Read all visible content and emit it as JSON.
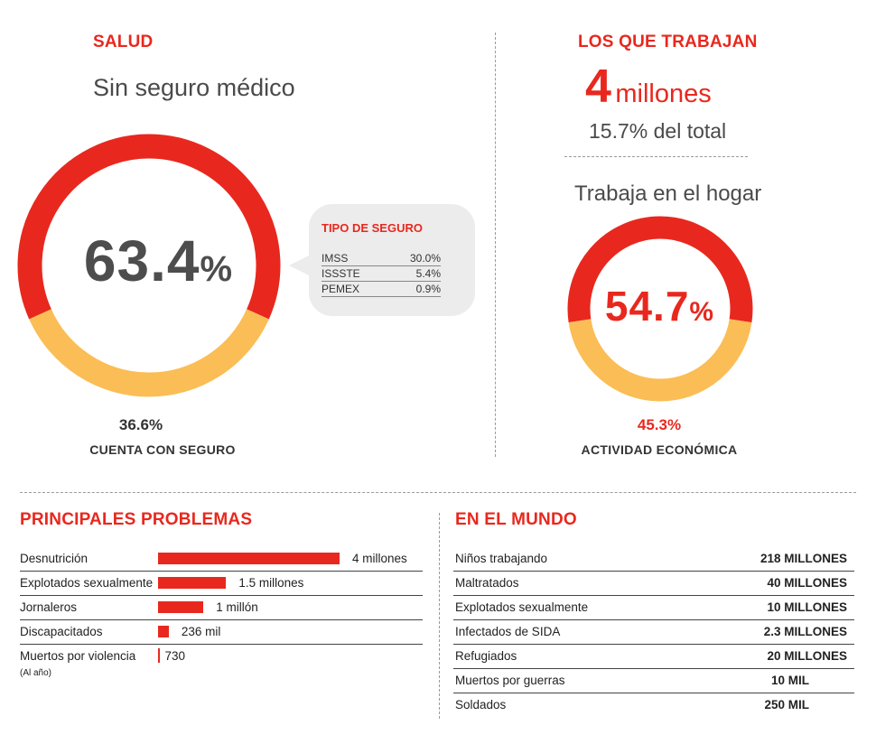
{
  "salud": {
    "title": "SALUD",
    "subtitle": "Sin seguro médico",
    "center_value": "63.4",
    "center_unit": "%",
    "bottom_value": "36.6%",
    "bottom_label": "CUENTA CON SEGURO",
    "colors": {
      "main": "#e8281e",
      "secondary": "#fbbd55",
      "text": "#4d4d4d"
    }
  },
  "tipo_seguro": {
    "title": "TIPO DE SEGURO",
    "rows": [
      {
        "label": "IMSS",
        "value": "30.0%"
      },
      {
        "label": "ISSSTE",
        "value": "5.4%"
      },
      {
        "label": "PEMEX",
        "value": "0.9%"
      }
    ]
  },
  "trabajan": {
    "title": "LOS QUE TRABAJAN",
    "big_number": "4",
    "big_unit": "millones",
    "share": "15.7% del total",
    "subtitle": "Trabaja en el hogar",
    "center_value": "54.7",
    "center_unit": "%",
    "bottom_value": "45.3%",
    "bottom_label": "ACTIVIDAD ECONÓMICA"
  },
  "problemas": {
    "title": "PRINCIPALES PROBLEMAS",
    "note": "(Al año)"
  },
  "mundo": {
    "title": "EN EL MUNDO",
    "rows": [
      {
        "label": "Niños trabajando",
        "value": "218 MILLONES"
      },
      {
        "label": "Maltratados",
        "value": "40 MILLONES"
      },
      {
        "label": "Explotados sexualmente",
        "value": "10 MILLONES"
      },
      {
        "label": "Infectados de SIDA",
        "value": "2.3 MILLONES"
      },
      {
        "label": "Refugiados",
        "value": "20 MILLONES"
      },
      {
        "label": "Muertos por guerras",
        "value": "10 MIL"
      },
      {
        "label": "Soldados",
        "value": "250 MIL"
      }
    ]
  },
  "chart_data": [
    {
      "type": "pie",
      "title": "Sin seguro médico",
      "categories": [
        "Sin seguro médico",
        "Cuenta con seguro"
      ],
      "values": [
        63.4,
        36.6
      ]
    },
    {
      "type": "pie",
      "title": "Trabaja en el hogar",
      "categories": [
        "Trabaja en el hogar",
        "Actividad económica"
      ],
      "values": [
        54.7,
        45.3
      ]
    },
    {
      "type": "bar",
      "title": "PRINCIPALES PROBLEMAS",
      "categories": [
        "Desnutrición",
        "Explotados sexualmente",
        "Jornaleros",
        "Discapacitados",
        "Muertos por violencia"
      ],
      "values": [
        4000000,
        1500000,
        1000000,
        236000,
        730
      ],
      "value_labels": [
        "4 millones",
        "1.5 millones",
        "1 millón",
        "236 mil",
        "730"
      ]
    }
  ]
}
